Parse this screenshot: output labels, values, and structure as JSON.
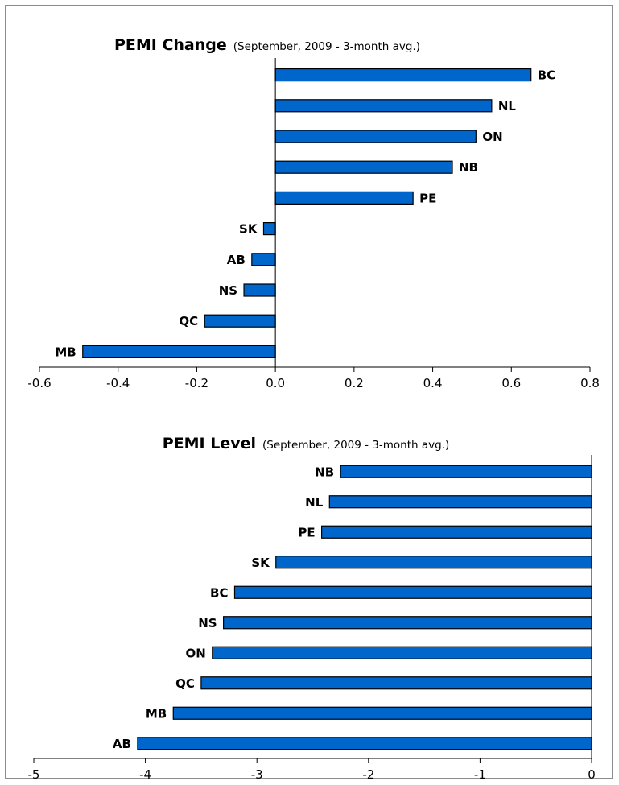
{
  "chart_data": [
    {
      "type": "bar",
      "orientation": "horizontal",
      "title": "PEMI Change",
      "subtitle": "(September, 2009 - 3-month avg.)",
      "categories": [
        "BC",
        "NL",
        "ON",
        "NB",
        "PE",
        "SK",
        "AB",
        "NS",
        "QC",
        "MB"
      ],
      "values": [
        0.65,
        0.55,
        0.51,
        0.45,
        0.35,
        -0.03,
        -0.06,
        -0.08,
        -0.18,
        -0.49
      ],
      "xlim": [
        -0.6,
        0.8
      ],
      "xticks": [
        "-0.6",
        "-0.4",
        "-0.2",
        "0.0",
        "0.2",
        "0.4",
        "0.6",
        "0.8"
      ],
      "xlabel": "",
      "ylabel": "",
      "bar_color": "#0066cc",
      "grid": false,
      "legend": "none"
    },
    {
      "type": "bar",
      "orientation": "horizontal",
      "title": "PEMI Level",
      "subtitle": "(September, 2009 - 3-month avg.)",
      "categories": [
        "NB",
        "NL",
        "PE",
        "SK",
        "BC",
        "NS",
        "ON",
        "QC",
        "MB",
        "AB"
      ],
      "values": [
        -2.25,
        -2.35,
        -2.42,
        -2.83,
        -3.2,
        -3.3,
        -3.4,
        -3.5,
        -3.75,
        -4.07
      ],
      "xlim": [
        -5,
        0
      ],
      "xticks": [
        "-5",
        "-4",
        "-3",
        "-2",
        "-1",
        "0"
      ],
      "xlabel": "",
      "ylabel": "",
      "bar_color": "#0066cc",
      "grid": false,
      "legend": "none"
    }
  ]
}
